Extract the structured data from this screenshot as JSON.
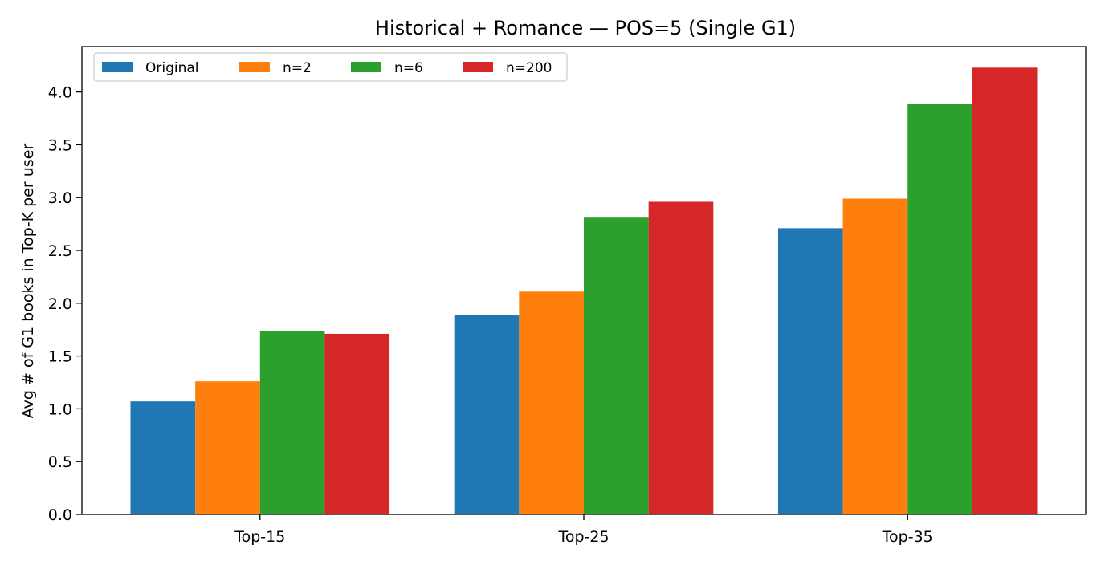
{
  "chart_data": {
    "type": "bar",
    "title": "Historical + Romance — POS=5 (Single G1)",
    "xlabel": "",
    "ylabel": "Avg # of G1 books in Top-K per user",
    "categories": [
      "Top-15",
      "Top-25",
      "Top-35"
    ],
    "ylim": [
      0,
      4.43
    ],
    "yticks": [
      0.0,
      0.5,
      1.0,
      1.5,
      2.0,
      2.5,
      3.0,
      3.5,
      4.0
    ],
    "ytick_labels": [
      "0.0",
      "0.5",
      "1.0",
      "1.5",
      "2.0",
      "2.5",
      "3.0",
      "3.5",
      "4.0"
    ],
    "grid": false,
    "legend": "top-left",
    "series": [
      {
        "name": "Original",
        "color": "#1f77b4",
        "values": [
          1.07,
          1.89,
          2.71
        ]
      },
      {
        "name": "n=2",
        "color": "#ff7f0e",
        "values": [
          1.26,
          2.11,
          2.99
        ]
      },
      {
        "name": "n=6",
        "color": "#2ca02c",
        "values": [
          1.74,
          2.81,
          3.89
        ]
      },
      {
        "name": "n=200",
        "color": "#d62728",
        "values": [
          1.71,
          2.96,
          4.23
        ]
      }
    ]
  }
}
